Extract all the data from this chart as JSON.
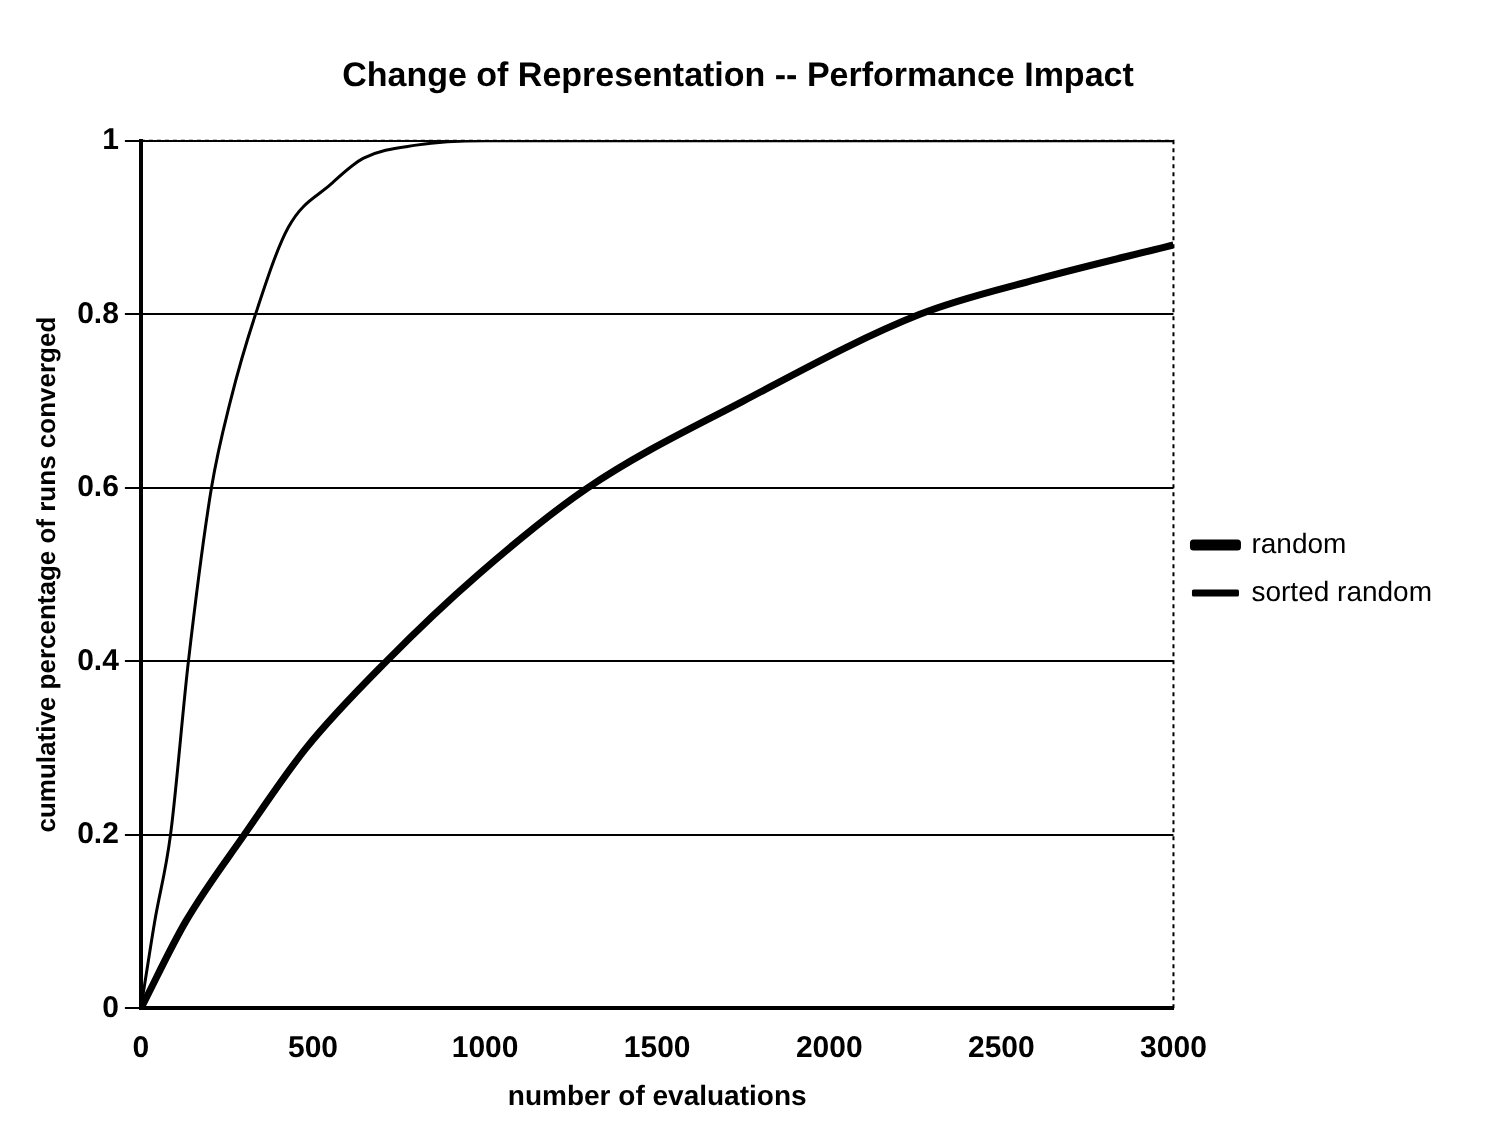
{
  "chart_data": {
    "type": "line",
    "title": "Change of Representation -- Performance Impact",
    "xlabel": "number of evaluations",
    "ylabel": "cumulative percentage of runs converged",
    "xlim": [
      0,
      3000
    ],
    "xticks": [
      0,
      500,
      1000,
      1500,
      2000,
      2500,
      3000
    ],
    "ylim": [
      0,
      1
    ],
    "yticks": [
      0,
      0.2,
      0.4,
      0.6,
      0.8,
      1
    ],
    "grid": "y",
    "legend": "right",
    "marker": "none",
    "line_style": "solid",
    "series": [
      {
        "name": "random",
        "color": "#000000",
        "x": [
          0,
          130,
          300,
          480,
          713,
          980,
          1298,
          1750,
          2263,
          2600,
          3000
        ],
        "values": [
          0,
          0.1,
          0.2,
          0.3,
          0.4,
          0.5,
          0.6,
          0.7,
          0.8,
          0.84,
          0.88
        ]
      },
      {
        "name": "sorted random",
        "color": "#000000",
        "x": [
          0,
          40,
          86,
          138,
          205,
          260,
          333,
          428,
          552,
          647,
          800,
          1000,
          1500,
          3000
        ],
        "values": [
          0,
          0.1,
          0.2,
          0.4,
          0.6,
          0.7,
          0.8,
          0.9,
          0.95,
          0.98,
          0.995,
          1,
          1,
          1
        ]
      }
    ]
  }
}
